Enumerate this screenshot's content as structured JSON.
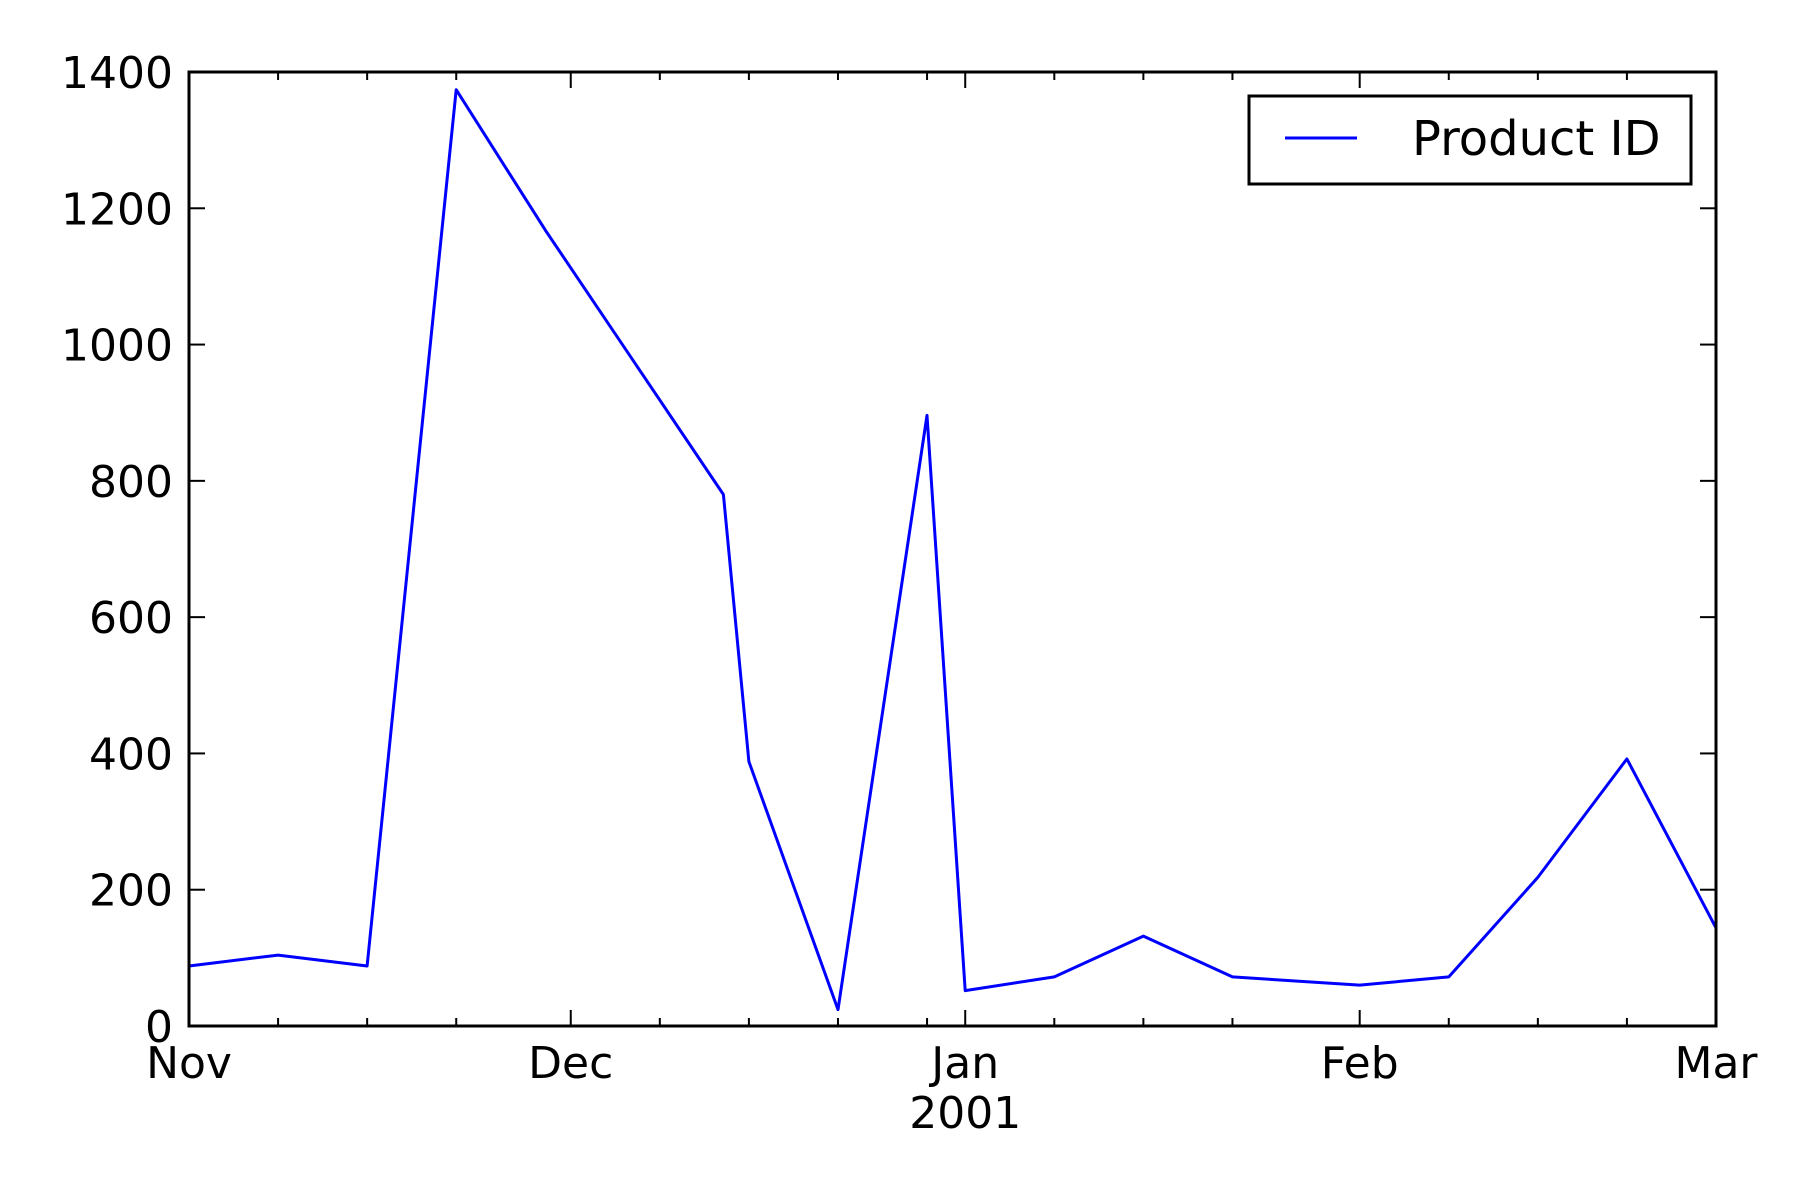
{
  "chart_data": {
    "type": "line",
    "title": "",
    "xlabel": "",
    "ylabel": "",
    "x_axis": {
      "type": "date",
      "range": [
        "2000-11-01",
        "2001-03-01"
      ],
      "major_ticks": [
        {
          "date": "2000-11-01",
          "label": "Nov"
        },
        {
          "date": "2000-12-01",
          "label": "Dec"
        },
        {
          "date": "2001-01-01",
          "label": "Jan"
        },
        {
          "date": "2001-02-01",
          "label": "Feb"
        },
        {
          "date": "2001-03-01",
          "label": "Mar"
        }
      ],
      "minor_ticks": [
        "2000-11-08",
        "2000-11-15",
        "2000-11-22",
        "2000-12-08",
        "2000-12-15",
        "2000-12-22",
        "2000-12-29",
        "2001-01-08",
        "2001-01-15",
        "2001-01-22",
        "2001-02-08",
        "2001-02-15",
        "2001-02-22"
      ],
      "year_label": {
        "date": "2001-01-01",
        "label": "2001"
      }
    },
    "ylim": [
      0,
      1400
    ],
    "yticks": [
      0,
      200,
      400,
      600,
      800,
      1000,
      1200,
      1400
    ],
    "grid": false,
    "legend": {
      "position": "top-right"
    },
    "series": [
      {
        "name": "Product ID",
        "color": "#0000ff",
        "points": [
          {
            "x": "2000-11-01",
            "y": 88
          },
          {
            "x": "2000-11-08",
            "y": 104
          },
          {
            "x": "2000-11-15",
            "y": 88
          },
          {
            "x": "2000-11-22",
            "y": 1374
          },
          {
            "x": "2000-11-29",
            "y": 1168
          },
          {
            "x": "2000-12-13",
            "y": 780
          },
          {
            "x": "2000-12-15",
            "y": 388
          },
          {
            "x": "2000-12-22",
            "y": 24
          },
          {
            "x": "2000-12-29",
            "y": 896
          },
          {
            "x": "2001-01-01",
            "y": 52
          },
          {
            "x": "2001-01-08",
            "y": 72
          },
          {
            "x": "2001-01-15",
            "y": 132
          },
          {
            "x": "2001-01-22",
            "y": 72
          },
          {
            "x": "2001-02-01",
            "y": 60
          },
          {
            "x": "2001-02-08",
            "y": 72
          },
          {
            "x": "2001-02-15",
            "y": 218
          },
          {
            "x": "2001-02-22",
            "y": 392
          },
          {
            "x": "2001-03-01",
            "y": 144
          }
        ]
      }
    ]
  }
}
